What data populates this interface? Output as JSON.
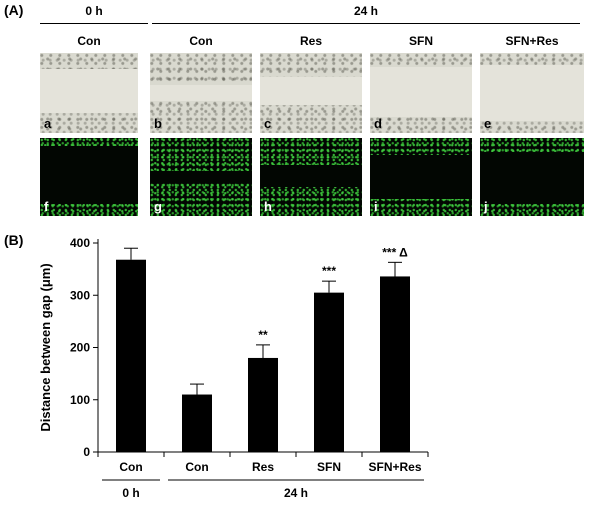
{
  "panel_a": {
    "tag": "(A)",
    "time_0": "0 h",
    "time_24": "24 h",
    "columns": [
      "Con",
      "Con",
      "Res",
      "SFN",
      "SFN+Res"
    ],
    "brightfield_letters": [
      "a",
      "b",
      "c",
      "d",
      "e"
    ],
    "fluorescence_letters": [
      "f",
      "g",
      "h",
      "i",
      "j"
    ]
  },
  "panel_b": {
    "tag": "(B)"
  },
  "chart_data": {
    "type": "bar",
    "ylabel": "Distance between gap (μm)",
    "categories": [
      "Con",
      "Con",
      "Res",
      "SFN",
      "SFN+Res"
    ],
    "values": [
      368,
      110,
      180,
      305,
      336
    ],
    "errors": [
      22,
      20,
      25,
      22,
      27
    ],
    "annotations": [
      "",
      "",
      "**",
      "***",
      "*** Δ"
    ],
    "ylim": [
      0,
      400
    ],
    "yticks": [
      0,
      100,
      200,
      300,
      400
    ],
    "groups": [
      {
        "label": "0 h",
        "span": [
          0,
          0
        ]
      },
      {
        "label": "24 h",
        "span": [
          1,
          4
        ]
      }
    ],
    "bar_color": "#000000"
  }
}
